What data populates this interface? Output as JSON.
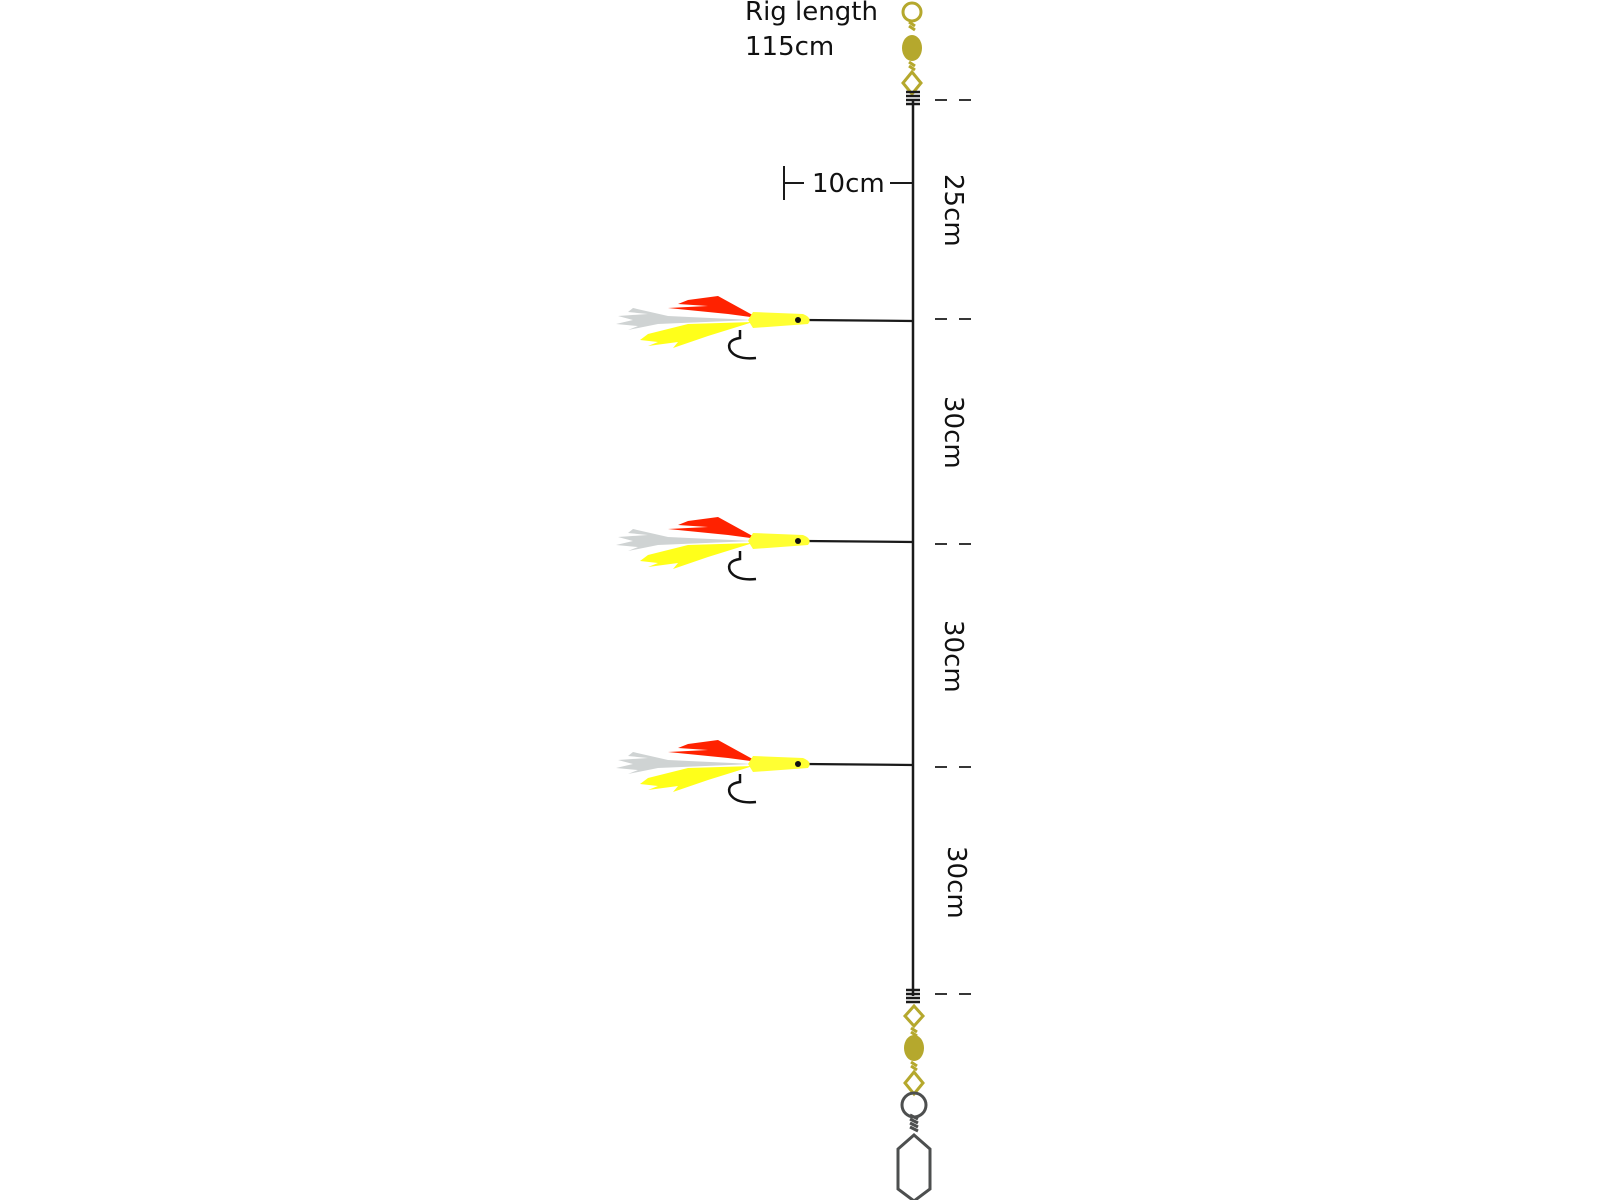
{
  "title": {
    "line1": "Rig length",
    "line2": "115cm"
  },
  "snood_length": "10cm",
  "segments": [
    {
      "label": "25cm"
    },
    {
      "label": "30cm"
    },
    {
      "label": "30cm"
    },
    {
      "label": "30cm"
    }
  ],
  "flies_count": 3,
  "colors": {
    "line": "#1a1a1a",
    "swivel": "#b5a82d",
    "snap": "#4d4f4f",
    "fly_body": "#ffff33",
    "fly_feather_yellow": "#ffff1a",
    "fly_feather_grey": "#cfd3d3",
    "fly_feather_red": "#ff2200"
  }
}
